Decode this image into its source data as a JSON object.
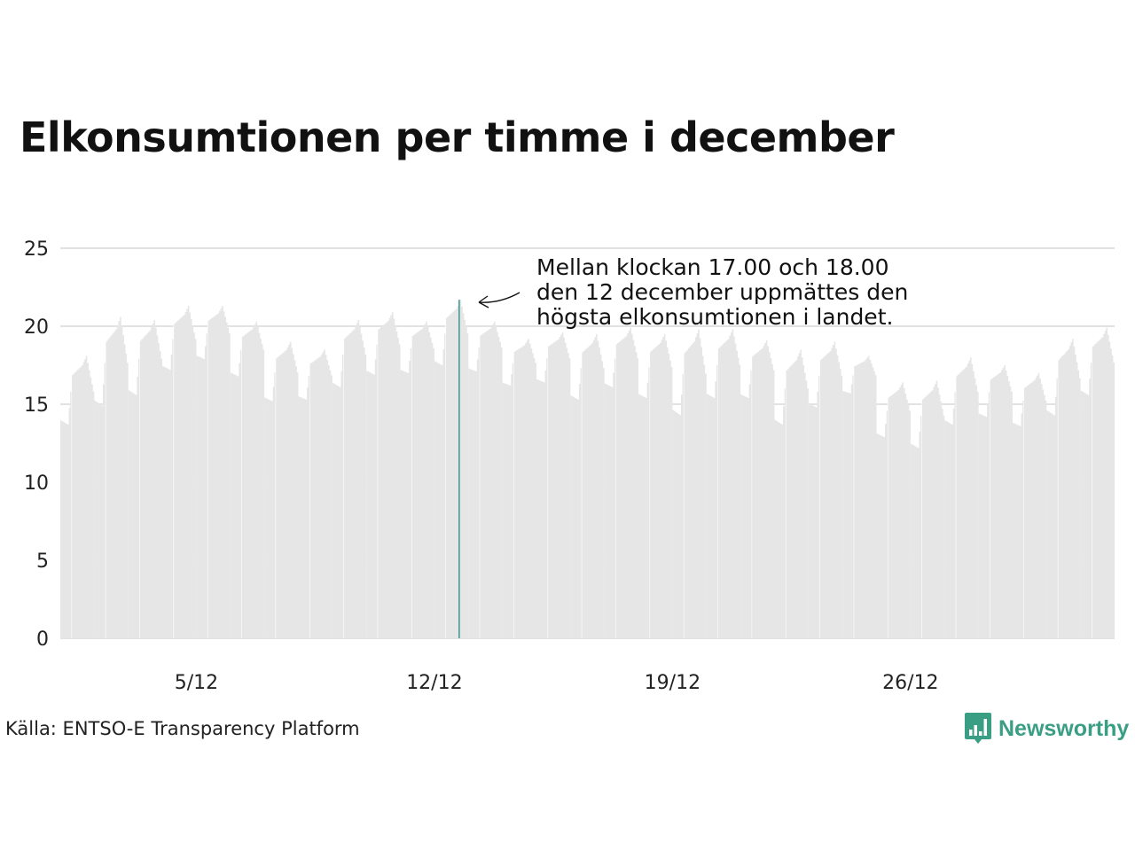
{
  "title": "Elkonsumtionen per timme i december",
  "source": "Källa: ENTSO-E Transparency Platform",
  "logo": {
    "text": "Newsworthy",
    "icon": "newsworthy-bar-chart-icon",
    "color": "#3a9e84"
  },
  "colors": {
    "bars": "#e6e6e6",
    "highlight": "#1f8a7e",
    "grid": "#e2e2e2",
    "text": "#111111"
  },
  "chart_data": {
    "type": "bar",
    "x_unit": "hour",
    "x_start": "2021-12-01T00:00",
    "ylim": [
      0,
      25
    ],
    "yticks": [
      0,
      5,
      10,
      15,
      20,
      25
    ],
    "xticks": [
      {
        "date": "2021-12-05",
        "label": "5/12"
      },
      {
        "date": "2021-12-12",
        "label": "12/12"
      },
      {
        "date": "2021-12-19",
        "label": "19/12"
      },
      {
        "date": "2021-12-26",
        "label": "26/12"
      }
    ],
    "grid": true,
    "highlight": {
      "datetime": "2021-12-12T17:00",
      "value": 21.7
    },
    "annotation": [
      "Mellan klockan 17.00 och 18.00",
      "den 12 december uppmättes den",
      "högsta elkonsumtionen i landet."
    ],
    "daily": [
      {
        "date": "2021-12-01",
        "min": 13.7,
        "max": 18.1
      },
      {
        "date": "2021-12-02",
        "min": 14.9,
        "max": 20.6
      },
      {
        "date": "2021-12-03",
        "min": 15.6,
        "max": 20.4
      },
      {
        "date": "2021-12-04",
        "min": 17.2,
        "max": 21.3
      },
      {
        "date": "2021-12-05",
        "min": 17.9,
        "max": 21.3
      },
      {
        "date": "2021-12-06",
        "min": 16.8,
        "max": 20.3
      },
      {
        "date": "2021-12-07",
        "min": 15.2,
        "max": 19.0
      },
      {
        "date": "2021-12-08",
        "min": 15.3,
        "max": 18.5
      },
      {
        "date": "2021-12-09",
        "min": 16.1,
        "max": 20.4
      },
      {
        "date": "2021-12-10",
        "min": 16.9,
        "max": 20.9
      },
      {
        "date": "2021-12-11",
        "min": 17.0,
        "max": 20.3
      },
      {
        "date": "2021-12-12",
        "min": 17.5,
        "max": 21.7
      },
      {
        "date": "2021-12-13",
        "min": 17.1,
        "max": 20.3
      },
      {
        "date": "2021-12-14",
        "min": 16.2,
        "max": 19.2
      },
      {
        "date": "2021-12-15",
        "min": 16.4,
        "max": 19.6
      },
      {
        "date": "2021-12-16",
        "min": 15.3,
        "max": 19.5
      },
      {
        "date": "2021-12-17",
        "min": 16.1,
        "max": 19.9
      },
      {
        "date": "2021-12-18",
        "min": 15.4,
        "max": 19.5
      },
      {
        "date": "2021-12-19",
        "min": 14.3,
        "max": 19.8
      },
      {
        "date": "2021-12-20",
        "min": 15.4,
        "max": 19.8
      },
      {
        "date": "2021-12-21",
        "min": 15.4,
        "max": 19.1
      },
      {
        "date": "2021-12-22",
        "min": 13.7,
        "max": 18.5
      },
      {
        "date": "2021-12-23",
        "min": 14.8,
        "max": 19.0
      },
      {
        "date": "2021-12-24",
        "min": 15.7,
        "max": 18.1
      },
      {
        "date": "2021-12-25",
        "min": 12.9,
        "max": 16.4
      },
      {
        "date": "2021-12-26",
        "min": 12.2,
        "max": 16.5
      },
      {
        "date": "2021-12-27",
        "min": 13.7,
        "max": 18.0
      },
      {
        "date": "2021-12-28",
        "min": 14.2,
        "max": 17.5
      },
      {
        "date": "2021-12-29",
        "min": 13.6,
        "max": 17.0
      },
      {
        "date": "2021-12-30",
        "min": 14.3,
        "max": 19.2
      },
      {
        "date": "2021-12-31",
        "min": 15.6,
        "max": 19.9
      }
    ]
  }
}
